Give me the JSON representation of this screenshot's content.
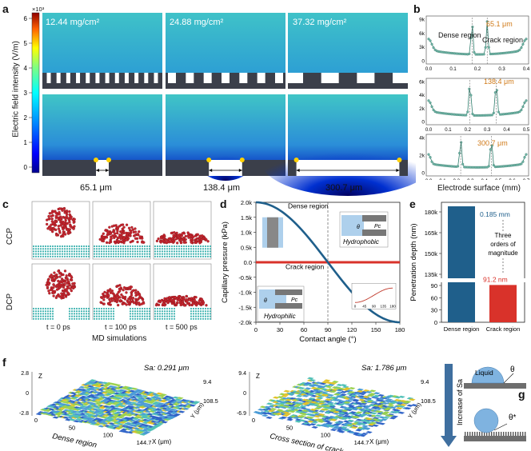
{
  "panel_labels": {
    "a": "a",
    "b": "b",
    "c": "c",
    "d": "d",
    "e": "e",
    "f": "f",
    "g": "g"
  },
  "panel_a": {
    "colorbar": {
      "exponent": "×10³",
      "ticks": [
        "6",
        "5",
        "4",
        "3",
        "2",
        "1",
        "0"
      ],
      "label": "Electric field intensity (V/m)"
    },
    "loadings": [
      "12.44 mg/cm²",
      "24.88 mg/cm²",
      "37.32 mg/cm²"
    ],
    "widths": [
      "65.1 μm",
      "138.4 μm",
      "300.7 μm"
    ]
  },
  "panel_b": {
    "plots": [
      {
        "yticks": [
          "9k",
          "6k",
          "3k",
          "0"
        ],
        "xticks": [
          "0.0",
          "0.1",
          "0.2",
          "0.3",
          "0.4"
        ],
        "annot": "65.1 μm",
        "dense": "Dense region",
        "crack": "Crack region"
      },
      {
        "yticks": [
          "6k",
          "4k",
          "2k",
          "0"
        ],
        "xticks": [
          "0.0",
          "0.1",
          "0.2",
          "0.3",
          "0.4",
          "0.5"
        ],
        "annot": "138.4 μm"
      },
      {
        "yticks": [
          "4k",
          "2k",
          "0"
        ],
        "xticks": [
          "0.0",
          "0.1",
          "0.2",
          "0.3",
          "0.4",
          "0.5",
          "0.6",
          "0.7"
        ],
        "annot": "300.7 μm"
      }
    ],
    "xlabel": "Electrode surface (mm)"
  },
  "panel_c": {
    "rows": [
      "CCP",
      "DCP"
    ],
    "times": [
      "t = 0 ps",
      "t = 100 ps",
      "t = 500 ps"
    ],
    "caption": "MD simulations"
  },
  "panel_d": {
    "chart_data": {
      "type": "line",
      "xlabel": "Contact angle (°)",
      "ylabel": "Capillary pressure (kPa)",
      "xticks": [
        "0",
        "30",
        "60",
        "90",
        "120",
        "150",
        "180"
      ],
      "yticks": [
        "2.0k",
        "1.5k",
        "1.0k",
        "0.5k",
        "0.0",
        "-0.5k",
        "-1.0k",
        "-1.5k",
        "-2.0k"
      ],
      "xlim": [
        0,
        180
      ],
      "ylim": [
        -2000,
        2000
      ],
      "series": [
        {
          "name": "Dense region",
          "x": [
            0,
            15,
            30,
            45,
            60,
            75,
            90,
            105,
            120,
            135,
            150,
            165,
            180
          ],
          "values": [
            2000,
            1932,
            1732,
            1414,
            1000,
            518,
            0,
            -518,
            -1000,
            -1414,
            -1732,
            -1932,
            -2000
          ]
        },
        {
          "name": "Crack region",
          "x": [
            0,
            180
          ],
          "values": [
            0,
            0
          ]
        }
      ],
      "inset_xticks": [
        "0",
        "45",
        "90",
        "135",
        "180"
      ]
    },
    "hydrophobic": "Hydrophobic",
    "hydrophilic": "Hydrophilic",
    "theta": "θ",
    "pc": "Pc"
  },
  "panel_e": {
    "chart_data": {
      "type": "bar",
      "categories": [
        "Dense region",
        "Crack region"
      ],
      "values": [
        185000,
        91.2
      ],
      "value_labels": [
        "0.185 mm",
        "91.2 nm"
      ],
      "ylabel": "Penetration depth (nm)",
      "yticks_top": [
        "180k",
        "165k",
        "150k",
        "135k"
      ],
      "yticks_bottom": [
        "90",
        "60",
        "30",
        "0"
      ]
    },
    "note": [
      "Three",
      "orders of",
      "magnitude"
    ],
    "colors": {
      "dense": "#1f5f8b",
      "crack": "#d9322a"
    }
  },
  "panel_f": {
    "left": {
      "sa": "Sa: 0.291 μm",
      "zticks": [
        "2.8",
        "0",
        "-2.8"
      ],
      "caption": "Dense region",
      "xticks": [
        "0",
        "50",
        "100",
        "144.7"
      ],
      "yticks": [
        "9.4",
        "108.5"
      ],
      "xunit": "X (μm)",
      "yunit": "Y (μm)",
      "z": "Z"
    },
    "right": {
      "sa": "Sa: 1.786 μm",
      "zticks": [
        "9.4",
        "0",
        "-6.9"
      ],
      "caption": "Cross section of crack",
      "xticks": [
        "0",
        "50",
        "100",
        "144.7"
      ],
      "yticks": [
        "9.4",
        "108.5"
      ],
      "xunit": "X (μm)",
      "yunit": "Y (μm)",
      "z": "Z"
    }
  },
  "panel_g": {
    "liquid": "Liquid",
    "theta": "θ",
    "theta_star": "θ*",
    "arrow_label": "Increase of Sa"
  }
}
